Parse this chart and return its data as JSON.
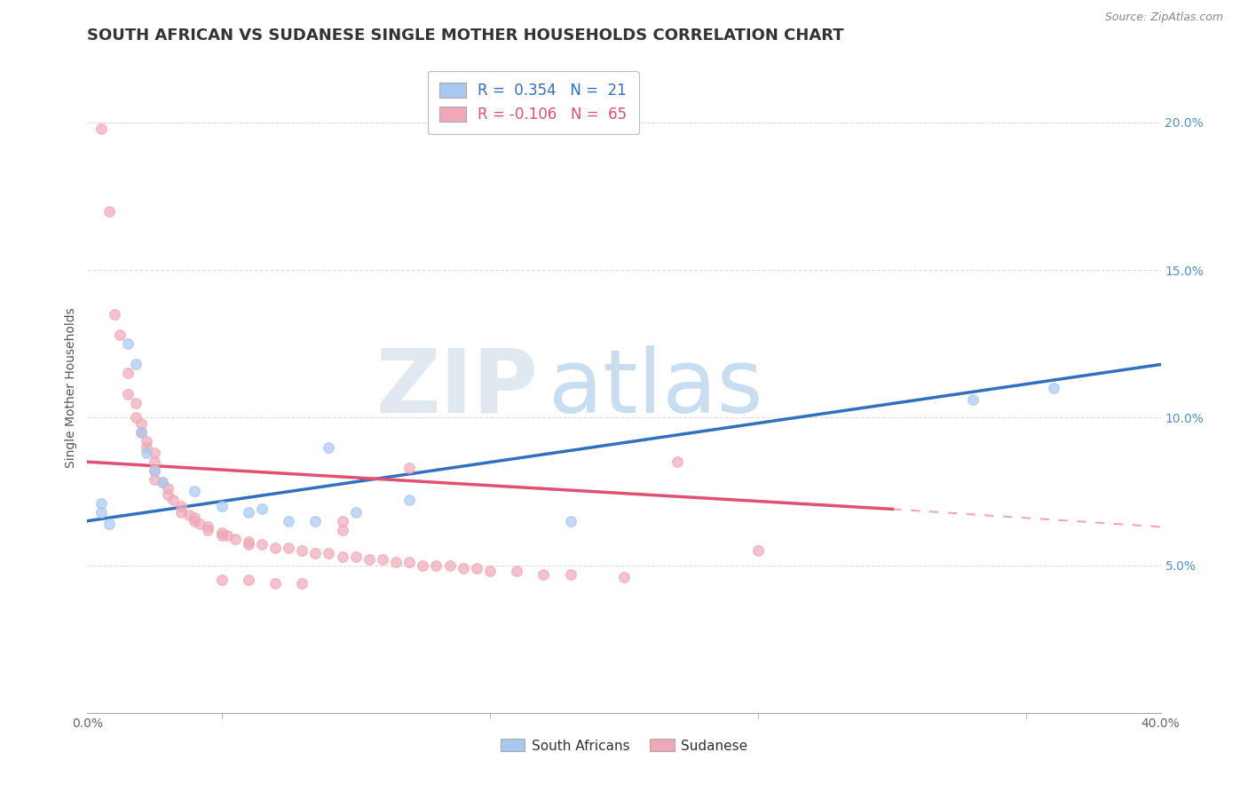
{
  "title": "SOUTH AFRICAN VS SUDANESE SINGLE MOTHER HOUSEHOLDS CORRELATION CHART",
  "source": "Source: ZipAtlas.com",
  "ylabel_label": "Single Mother Households",
  "xlim": [
    0.0,
    0.4
  ],
  "ylim": [
    0.0,
    0.22
  ],
  "xticks_major": [
    0.0,
    0.1,
    0.2,
    0.3,
    0.4
  ],
  "xticks_minor": [
    0.05,
    0.15,
    0.25,
    0.35
  ],
  "yticks": [
    0.05,
    0.1,
    0.15,
    0.2
  ],
  "xticklabels": [
    "0.0%",
    "",
    "",
    "",
    "40.0%"
  ],
  "yticklabels_right": [
    "5.0%",
    "10.0%",
    "15.0%",
    "20.0%"
  ],
  "legend_label_south_africans": "South Africans",
  "legend_label_sudanese": "Sudanese",
  "south_african_color": "#a8c8f0",
  "sudanese_color": "#f0a8b8",
  "south_african_line_color": "#3070c0",
  "sudanese_line_color": "#e05070",
  "background_color": "#ffffff",
  "grid_color": "#d8d8d8",
  "south_african_R": 0.354,
  "south_african_N": 21,
  "sudanese_R": -0.106,
  "sudanese_N": 65,
  "sa_line_x0": 0.0,
  "sa_line_y0": 0.065,
  "sa_line_x1": 0.4,
  "sa_line_y1": 0.118,
  "sd_line_solid_x0": 0.0,
  "sd_line_solid_y0": 0.085,
  "sd_line_solid_x1": 0.3,
  "sd_line_solid_y1": 0.069,
  "sd_line_dash_x0": 0.3,
  "sd_line_dash_y0": 0.069,
  "sd_line_dash_x1": 0.4,
  "sd_line_dash_y1": 0.063,
  "south_african_points": [
    [
      0.005,
      0.071
    ],
    [
      0.005,
      0.068
    ],
    [
      0.008,
      0.064
    ],
    [
      0.015,
      0.125
    ],
    [
      0.018,
      0.118
    ],
    [
      0.02,
      0.095
    ],
    [
      0.022,
      0.088
    ],
    [
      0.025,
      0.082
    ],
    [
      0.028,
      0.078
    ],
    [
      0.04,
      0.075
    ],
    [
      0.05,
      0.07
    ],
    [
      0.06,
      0.068
    ],
    [
      0.065,
      0.069
    ],
    [
      0.075,
      0.065
    ],
    [
      0.085,
      0.065
    ],
    [
      0.09,
      0.09
    ],
    [
      0.1,
      0.068
    ],
    [
      0.12,
      0.072
    ],
    [
      0.18,
      0.065
    ],
    [
      0.33,
      0.106
    ],
    [
      0.36,
      0.11
    ]
  ],
  "sudanese_points": [
    [
      0.005,
      0.198
    ],
    [
      0.008,
      0.17
    ],
    [
      0.01,
      0.135
    ],
    [
      0.012,
      0.128
    ],
    [
      0.015,
      0.115
    ],
    [
      0.015,
      0.108
    ],
    [
      0.018,
      0.105
    ],
    [
      0.018,
      0.1
    ],
    [
      0.02,
      0.098
    ],
    [
      0.02,
      0.095
    ],
    [
      0.022,
      0.092
    ],
    [
      0.022,
      0.09
    ],
    [
      0.025,
      0.088
    ],
    [
      0.025,
      0.085
    ],
    [
      0.025,
      0.082
    ],
    [
      0.025,
      0.079
    ],
    [
      0.028,
      0.078
    ],
    [
      0.03,
      0.076
    ],
    [
      0.03,
      0.074
    ],
    [
      0.032,
      0.072
    ],
    [
      0.035,
      0.07
    ],
    [
      0.035,
      0.068
    ],
    [
      0.038,
      0.067
    ],
    [
      0.04,
      0.066
    ],
    [
      0.04,
      0.065
    ],
    [
      0.042,
      0.064
    ],
    [
      0.045,
      0.063
    ],
    [
      0.045,
      0.062
    ],
    [
      0.05,
      0.061
    ],
    [
      0.05,
      0.06
    ],
    [
      0.052,
      0.06
    ],
    [
      0.055,
      0.059
    ],
    [
      0.06,
      0.058
    ],
    [
      0.06,
      0.057
    ],
    [
      0.065,
      0.057
    ],
    [
      0.07,
      0.056
    ],
    [
      0.075,
      0.056
    ],
    [
      0.08,
      0.055
    ],
    [
      0.085,
      0.054
    ],
    [
      0.09,
      0.054
    ],
    [
      0.095,
      0.053
    ],
    [
      0.1,
      0.053
    ],
    [
      0.105,
      0.052
    ],
    [
      0.11,
      0.052
    ],
    [
      0.115,
      0.051
    ],
    [
      0.12,
      0.051
    ],
    [
      0.125,
      0.05
    ],
    [
      0.13,
      0.05
    ],
    [
      0.135,
      0.05
    ],
    [
      0.14,
      0.049
    ],
    [
      0.145,
      0.049
    ],
    [
      0.15,
      0.048
    ],
    [
      0.16,
      0.048
    ],
    [
      0.17,
      0.047
    ],
    [
      0.18,
      0.047
    ],
    [
      0.2,
      0.046
    ],
    [
      0.22,
      0.085
    ],
    [
      0.25,
      0.055
    ],
    [
      0.12,
      0.083
    ],
    [
      0.095,
      0.065
    ],
    [
      0.095,
      0.062
    ],
    [
      0.05,
      0.045
    ],
    [
      0.06,
      0.045
    ],
    [
      0.07,
      0.044
    ],
    [
      0.08,
      0.044
    ]
  ],
  "title_fontsize": 13,
  "axis_fontsize": 10,
  "tick_fontsize": 10
}
